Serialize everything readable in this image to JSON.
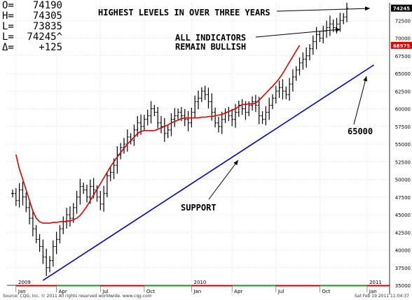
{
  "quote_box": {
    "open": {
      "label": "O=",
      "value": "74190"
    },
    "high": {
      "label": "H=",
      "value": "74305"
    },
    "low": {
      "label": "L=",
      "value": "73835"
    },
    "last": {
      "label": "L=",
      "value": "74245^"
    },
    "change": {
      "label": "Δ=",
      "value": "+125"
    }
  },
  "footer": {
    "copyright": "Source: CQG, Inc. © 2011 All rights reserved worldwide. www.cqg.com",
    "timestamp": "Sat Feb 19 2011 11:04:37"
  },
  "colors": {
    "price_bars": "#000000",
    "moving_average": "#e00000",
    "trendline": "#0000cc",
    "axis_text": "#000000",
    "last_price_box": "#000000",
    "ma_price_box": "#e00000"
  },
  "chart_data": {
    "type": "ohlc",
    "ylim": [
      35000,
      75000
    ],
    "y_ticks": [
      35000,
      37500,
      40000,
      42500,
      45000,
      47500,
      50000,
      52500,
      55000,
      57500,
      60000,
      62500,
      65000,
      67500,
      70000,
      72500
    ],
    "last_price_label": "74245",
    "ma_value_label": "68975",
    "year_labels": [
      {
        "label": "2009",
        "week": 0
      },
      {
        "label": "2010",
        "week": 52
      },
      {
        "label": "2011",
        "week": 104
      }
    ],
    "month_labels": [
      {
        "label": "Jan",
        "week": 1
      },
      {
        "label": "Apr",
        "week": 13
      },
      {
        "label": "Jul",
        "week": 26
      },
      {
        "label": "Oct",
        "week": 39
      },
      {
        "label": "Jan",
        "week": 53
      },
      {
        "label": "Apr",
        "week": 65
      },
      {
        "label": "Jul",
        "week": 78
      },
      {
        "label": "Oct",
        "week": 91
      },
      {
        "label": "Jan",
        "week": 105
      }
    ],
    "weekly_close": [
      48000,
      47000,
      48500,
      47500,
      46000,
      44500,
      43000,
      41500,
      40500,
      39000,
      37500,
      38500,
      40500,
      41500,
      43000,
      44000,
      45000,
      44500,
      46000,
      47500,
      49000,
      48500,
      47500,
      49000,
      48500,
      47500,
      46500,
      48000,
      50500,
      51000,
      52000,
      53500,
      54500,
      55000,
      56000,
      55500,
      57000,
      58000,
      57500,
      58500,
      59000,
      60000,
      59500,
      58000,
      57500,
      56500,
      57000,
      58500,
      59000,
      59500,
      59000,
      58500,
      58000,
      59500,
      61000,
      61500,
      62500,
      62000,
      61000,
      59500,
      58000,
      57500,
      58500,
      59500,
      59000,
      58500,
      59500,
      60500,
      60000,
      59500,
      60500,
      61000,
      60500,
      59000,
      58500,
      59500,
      60500,
      61500,
      62500,
      63000,
      62500,
      62000,
      63500,
      64500,
      65500,
      66500,
      67000,
      67500,
      68500,
      69500,
      70500,
      70000,
      71000,
      71500,
      72000,
      71500,
      72000,
      72500,
      73000,
      74245
    ],
    "moving_average": [
      53500,
      51500,
      50000,
      48500,
      47000,
      45500,
      44500,
      44000,
      43800,
      43800,
      43800,
      43900,
      43900,
      44000,
      44000,
      44100,
      44100,
      44300,
      44500,
      44900,
      45500,
      46200,
      47000,
      47800,
      48600,
      49400,
      50200,
      51000,
      51800,
      52500,
      53200,
      53800,
      54400,
      55000,
      55500,
      56000,
      56500,
      56800,
      56900,
      56900,
      56900,
      56900,
      57100,
      57300,
      57500,
      57700,
      58000,
      58200,
      58400,
      58600,
      58700,
      58700,
      58700,
      58700,
      58700,
      58800,
      58800,
      58900,
      58900,
      59000,
      59100,
      59200,
      59400,
      59600,
      59800,
      60000,
      60300,
      60600,
      60600,
      60700,
      60700,
      60800,
      61200,
      61700,
      62200,
      62700,
      63200,
      63700,
      64300,
      65000,
      65800,
      66600,
      67400,
      68200,
      68975
    ],
    "ma_start_week": 1,
    "trendline": {
      "from": {
        "week": 9,
        "value": 35700
      },
      "to": {
        "week": 107,
        "value": 66200
      }
    },
    "annotations": [
      {
        "text": "HIGHEST LEVELS IN OVER THREE YEARS"
      },
      {
        "text": "ALL INDICATORS"
      },
      {
        "text": "REMAIN BULLISH"
      },
      {
        "text": "SUPPORT"
      },
      {
        "text": "65000"
      }
    ]
  }
}
